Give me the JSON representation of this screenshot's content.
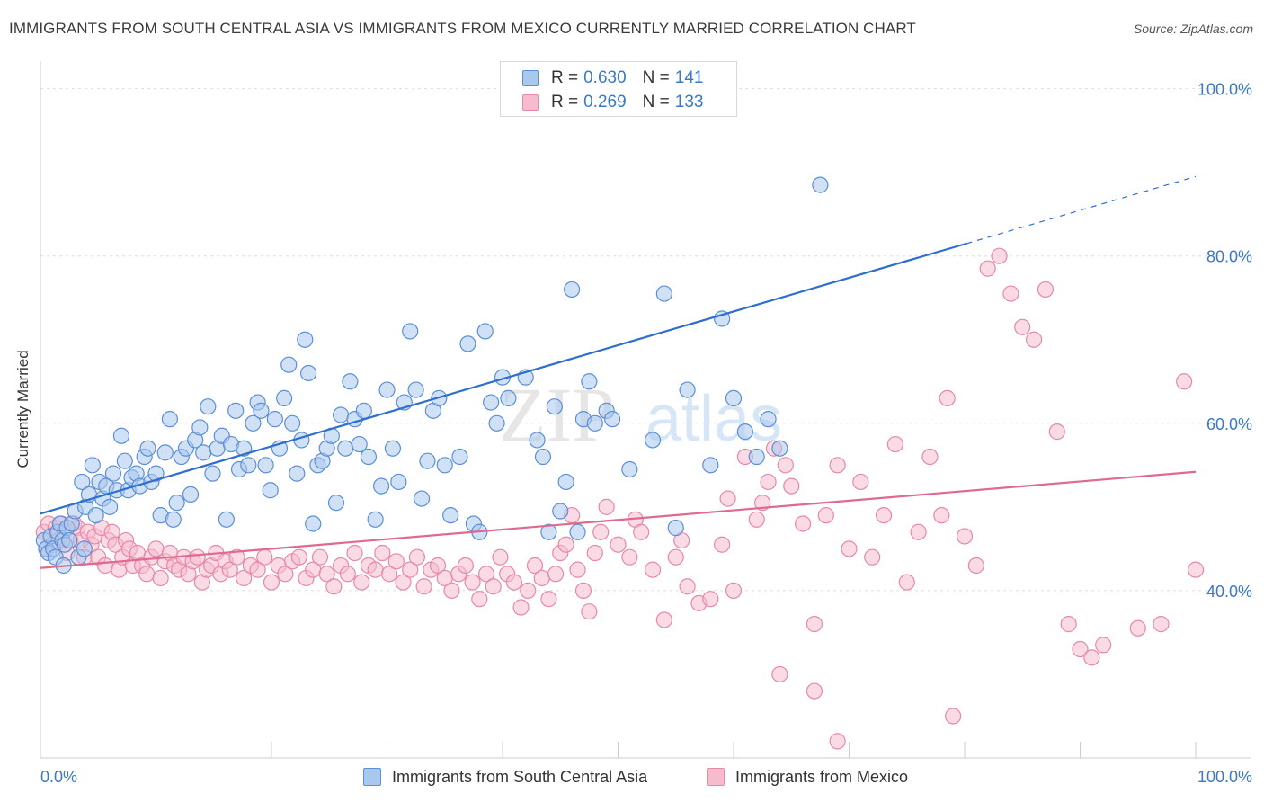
{
  "title": "IMMIGRANTS FROM SOUTH CENTRAL ASIA VS IMMIGRANTS FROM MEXICO CURRENTLY MARRIED CORRELATION CHART",
  "source": "Source: ZipAtlas.com",
  "watermark": {
    "zip": "ZIP",
    "atlas": "atlas"
  },
  "legend_top": [
    {
      "r_label": "R =",
      "r_value": "0.630",
      "n_label": "N =",
      "n_value": "141"
    },
    {
      "r_label": "R =",
      "r_value": "0.269",
      "n_label": "N =",
      "n_value": "133"
    }
  ],
  "colors": {
    "blue_fill": "#a9c8ee",
    "blue_stroke": "#5b8fd6",
    "blue_line": "#2e6fcd",
    "pink_fill": "#f6bccd",
    "pink_stroke": "#e58aa6",
    "pink_line": "#e0698f",
    "tick_label": "#3b78c8",
    "grid": "#dddddd"
  },
  "chart_data": {
    "type": "scatter",
    "title": "IMMIGRANTS FROM SOUTH CENTRAL ASIA VS IMMIGRANTS FROM MEXICO CURRENTLY MARRIED CORRELATION CHART",
    "xlabel": "",
    "ylabel": "Currently Married",
    "xlim": [
      0,
      100
    ],
    "ylim": [
      20,
      102
    ],
    "x_tick_labels": [
      "0.0%",
      "100.0%"
    ],
    "y_ticks": [
      40,
      60,
      80,
      100
    ],
    "y_tick_labels": [
      "40.0%",
      "60.0%",
      "80.0%",
      "100.0%"
    ],
    "grid": true,
    "legend_position": "bottom",
    "series": [
      {
        "name": "Immigrants from South Central Asia",
        "r": 0.63,
        "n": 141,
        "trend": {
          "x0": 0,
          "y0": 49.2,
          "x1": 80.2,
          "y1": 81.5,
          "dash_to_x": 100,
          "dash_to_y": 89.5
        },
        "points": [
          [
            0.3,
            46
          ],
          [
            0.5,
            45
          ],
          [
            0.7,
            44.5
          ],
          [
            0.9,
            46.5
          ],
          [
            1.1,
            45
          ],
          [
            1.3,
            44
          ],
          [
            1.5,
            47
          ],
          [
            1.7,
            48
          ],
          [
            1.9,
            46
          ],
          [
            2.1,
            45.5
          ],
          [
            2.3,
            47.5
          ],
          [
            2.5,
            46
          ],
          [
            2.7,
            48
          ],
          [
            3,
            49.5
          ],
          [
            3.3,
            44
          ],
          [
            3.6,
            53
          ],
          [
            3.9,
            50
          ],
          [
            4.2,
            51.5
          ],
          [
            4.5,
            55
          ],
          [
            4.8,
            49
          ],
          [
            5.1,
            53
          ],
          [
            5.4,
            51
          ],
          [
            5.7,
            52.5
          ],
          [
            6,
            50
          ],
          [
            6.3,
            54
          ],
          [
            6.6,
            52
          ],
          [
            7,
            58.5
          ],
          [
            7.3,
            55.5
          ],
          [
            7.6,
            52
          ],
          [
            7.9,
            53.5
          ],
          [
            8.3,
            54
          ],
          [
            8.6,
            52.5
          ],
          [
            9,
            56
          ],
          [
            9.3,
            57
          ],
          [
            9.6,
            53
          ],
          [
            10,
            54
          ],
          [
            10.4,
            49
          ],
          [
            10.8,
            56.5
          ],
          [
            11.2,
            60.5
          ],
          [
            11.5,
            48.5
          ],
          [
            11.8,
            50.5
          ],
          [
            12.2,
            56
          ],
          [
            12.6,
            57
          ],
          [
            13,
            51.5
          ],
          [
            13.4,
            58
          ],
          [
            13.8,
            59.5
          ],
          [
            14.1,
            56.5
          ],
          [
            14.5,
            62
          ],
          [
            14.9,
            54
          ],
          [
            15.3,
            57
          ],
          [
            15.7,
            58.5
          ],
          [
            16.1,
            48.5
          ],
          [
            16.5,
            57.5
          ],
          [
            16.9,
            61.5
          ],
          [
            17.2,
            54.5
          ],
          [
            17.6,
            57
          ],
          [
            18,
            55
          ],
          [
            18.4,
            60
          ],
          [
            18.8,
            62.5
          ],
          [
            19.1,
            61.5
          ],
          [
            19.5,
            55
          ],
          [
            19.9,
            52
          ],
          [
            20.3,
            60.5
          ],
          [
            20.7,
            57
          ],
          [
            21.1,
            63
          ],
          [
            21.5,
            67
          ],
          [
            21.8,
            60
          ],
          [
            22.2,
            54
          ],
          [
            22.6,
            58
          ],
          [
            22.9,
            70
          ],
          [
            23.2,
            66
          ],
          [
            23.6,
            48
          ],
          [
            24,
            55
          ],
          [
            24.4,
            55.5
          ],
          [
            24.8,
            57
          ],
          [
            25.2,
            58.5
          ],
          [
            25.6,
            50.5
          ],
          [
            26,
            61
          ],
          [
            26.4,
            57
          ],
          [
            26.8,
            65
          ],
          [
            27.2,
            60.5
          ],
          [
            27.6,
            57.5
          ],
          [
            28,
            61.5
          ],
          [
            28.4,
            56
          ],
          [
            29,
            48.5
          ],
          [
            29.5,
            52.5
          ],
          [
            30,
            64
          ],
          [
            30.5,
            57
          ],
          [
            31,
            53
          ],
          [
            31.5,
            62.5
          ],
          [
            32,
            71
          ],
          [
            32.5,
            64
          ],
          [
            33,
            51
          ],
          [
            33.5,
            55.5
          ],
          [
            34,
            61.5
          ],
          [
            34.5,
            63
          ],
          [
            35,
            55
          ],
          [
            35.5,
            49
          ],
          [
            36.3,
            56
          ],
          [
            37,
            69.5
          ],
          [
            37.5,
            48
          ],
          [
            38,
            47
          ],
          [
            38.5,
            71
          ],
          [
            39,
            62.5
          ],
          [
            39.5,
            60
          ],
          [
            40,
            65.5
          ],
          [
            40.5,
            63
          ],
          [
            42,
            65.5
          ],
          [
            43,
            58
          ],
          [
            43.5,
            56
          ],
          [
            44,
            47
          ],
          [
            44.5,
            62
          ],
          [
            45,
            49.5
          ],
          [
            45.5,
            53
          ],
          [
            46,
            76
          ],
          [
            46.5,
            47
          ],
          [
            47,
            60.5
          ],
          [
            47.5,
            65
          ],
          [
            48,
            60
          ],
          [
            49,
            61.5
          ],
          [
            49.5,
            60.5
          ],
          [
            51,
            54.5
          ],
          [
            53,
            58
          ],
          [
            54,
            75.5
          ],
          [
            55,
            47.5
          ],
          [
            56,
            64
          ],
          [
            58,
            55
          ],
          [
            59,
            72.5
          ],
          [
            60,
            63
          ],
          [
            61,
            59
          ],
          [
            62,
            56
          ],
          [
            63,
            60.5
          ],
          [
            64,
            57
          ],
          [
            67.5,
            88.5
          ],
          [
            3.8,
            45
          ],
          [
            2,
            43
          ]
        ]
      },
      {
        "name": "Immigrants from Mexico",
        "r": 0.269,
        "n": 133,
        "trend": {
          "x0": 0,
          "y0": 42.7,
          "x1": 100,
          "y1": 54.2
        },
        "points": [
          [
            0.3,
            47
          ],
          [
            0.5,
            45
          ],
          [
            0.7,
            48
          ],
          [
            0.9,
            46.5
          ],
          [
            1.1,
            45.5
          ],
          [
            1.3,
            47.5
          ],
          [
            1.5,
            46
          ],
          [
            1.8,
            48
          ],
          [
            2,
            47
          ],
          [
            2.3,
            44.5
          ],
          [
            2.6,
            46
          ],
          [
            2.9,
            48
          ],
          [
            3.2,
            47.5
          ],
          [
            3.5,
            46
          ],
          [
            3.8,
            44
          ],
          [
            4.1,
            47
          ],
          [
            4.4,
            45.5
          ],
          [
            4.7,
            46.5
          ],
          [
            5,
            44
          ],
          [
            5.3,
            47.5
          ],
          [
            5.6,
            43
          ],
          [
            5.9,
            46
          ],
          [
            6.2,
            47
          ],
          [
            6.5,
            45.5
          ],
          [
            6.8,
            42.5
          ],
          [
            7.1,
            44
          ],
          [
            7.4,
            46
          ],
          [
            7.7,
            45
          ],
          [
            8,
            43
          ],
          [
            8.4,
            44.5
          ],
          [
            8.8,
            43
          ],
          [
            9.2,
            42
          ],
          [
            9.6,
            44
          ],
          [
            10,
            45
          ],
          [
            10.4,
            41.5
          ],
          [
            10.8,
            43.5
          ],
          [
            11.2,
            44.5
          ],
          [
            11.6,
            43
          ],
          [
            12,
            42.5
          ],
          [
            12.4,
            44
          ],
          [
            12.8,
            42
          ],
          [
            13.2,
            43.5
          ],
          [
            13.6,
            44
          ],
          [
            14,
            41
          ],
          [
            14.4,
            42.5
          ],
          [
            14.8,
            43
          ],
          [
            15.2,
            44.5
          ],
          [
            15.6,
            42
          ],
          [
            16,
            43.5
          ],
          [
            16.4,
            42.5
          ],
          [
            17,
            44
          ],
          [
            17.6,
            41.5
          ],
          [
            18.2,
            43
          ],
          [
            18.8,
            42.5
          ],
          [
            19.4,
            44
          ],
          [
            20,
            41
          ],
          [
            20.6,
            43
          ],
          [
            21.2,
            42
          ],
          [
            21.8,
            43.5
          ],
          [
            22.4,
            44
          ],
          [
            23,
            41.5
          ],
          [
            23.6,
            42.5
          ],
          [
            24.2,
            44
          ],
          [
            24.8,
            42
          ],
          [
            25.4,
            40.5
          ],
          [
            26,
            43
          ],
          [
            26.6,
            42
          ],
          [
            27.2,
            44.5
          ],
          [
            27.8,
            41
          ],
          [
            28.4,
            43
          ],
          [
            29,
            42.5
          ],
          [
            29.6,
            44.5
          ],
          [
            30.2,
            42
          ],
          [
            30.8,
            43.5
          ],
          [
            31.4,
            41
          ],
          [
            32,
            42.5
          ],
          [
            32.6,
            44
          ],
          [
            33.2,
            40.5
          ],
          [
            33.8,
            42.5
          ],
          [
            34.4,
            43
          ],
          [
            35,
            41.5
          ],
          [
            35.6,
            40
          ],
          [
            36.2,
            42
          ],
          [
            36.8,
            43
          ],
          [
            37.4,
            41
          ],
          [
            38,
            39
          ],
          [
            38.6,
            42
          ],
          [
            39.2,
            40.5
          ],
          [
            39.8,
            44
          ],
          [
            40.4,
            42
          ],
          [
            41,
            41
          ],
          [
            41.6,
            38
          ],
          [
            42.2,
            40
          ],
          [
            42.8,
            43
          ],
          [
            43.4,
            41.5
          ],
          [
            44,
            39
          ],
          [
            44.6,
            42
          ],
          [
            45,
            44.5
          ],
          [
            45.5,
            45.5
          ],
          [
            46,
            49
          ],
          [
            46.5,
            42.5
          ],
          [
            47,
            40
          ],
          [
            47.5,
            37.5
          ],
          [
            48,
            44.5
          ],
          [
            48.5,
            47
          ],
          [
            49,
            50
          ],
          [
            50,
            45.5
          ],
          [
            51,
            44
          ],
          [
            51.5,
            48.5
          ],
          [
            52,
            47
          ],
          [
            53,
            42.5
          ],
          [
            54,
            36.5
          ],
          [
            55,
            44
          ],
          [
            55.5,
            46
          ],
          [
            56,
            40.5
          ],
          [
            57,
            38.5
          ],
          [
            58,
            39
          ],
          [
            59,
            45.5
          ],
          [
            59.5,
            51
          ],
          [
            60,
            40
          ],
          [
            61,
            56
          ],
          [
            62,
            48.5
          ],
          [
            62.5,
            50.5
          ],
          [
            63,
            53
          ],
          [
            63.5,
            57
          ],
          [
            64,
            30
          ],
          [
            64.5,
            55
          ],
          [
            65,
            52.5
          ],
          [
            66,
            48
          ],
          [
            67,
            36
          ],
          [
            68,
            49
          ],
          [
            69,
            55
          ],
          [
            70,
            45
          ],
          [
            71,
            53
          ],
          [
            72,
            44
          ],
          [
            73,
            49
          ],
          [
            74,
            57.5
          ],
          [
            75,
            41
          ],
          [
            76,
            47
          ],
          [
            77,
            56
          ],
          [
            78,
            49
          ],
          [
            78.5,
            63
          ],
          [
            79,
            25
          ],
          [
            80,
            46.5
          ],
          [
            81,
            43
          ],
          [
            82,
            78.5
          ],
          [
            83,
            80
          ],
          [
            84,
            75.5
          ],
          [
            85,
            71.5
          ],
          [
            86,
            70
          ],
          [
            87,
            76
          ],
          [
            88,
            59
          ],
          [
            89,
            36
          ],
          [
            90,
            33
          ],
          [
            91,
            32
          ],
          [
            92,
            33.5
          ],
          [
            95,
            35.5
          ],
          [
            97,
            36
          ],
          [
            99,
            65
          ],
          [
            100,
            42.5
          ],
          [
            67,
            28
          ],
          [
            69,
            22
          ]
        ]
      }
    ]
  }
}
